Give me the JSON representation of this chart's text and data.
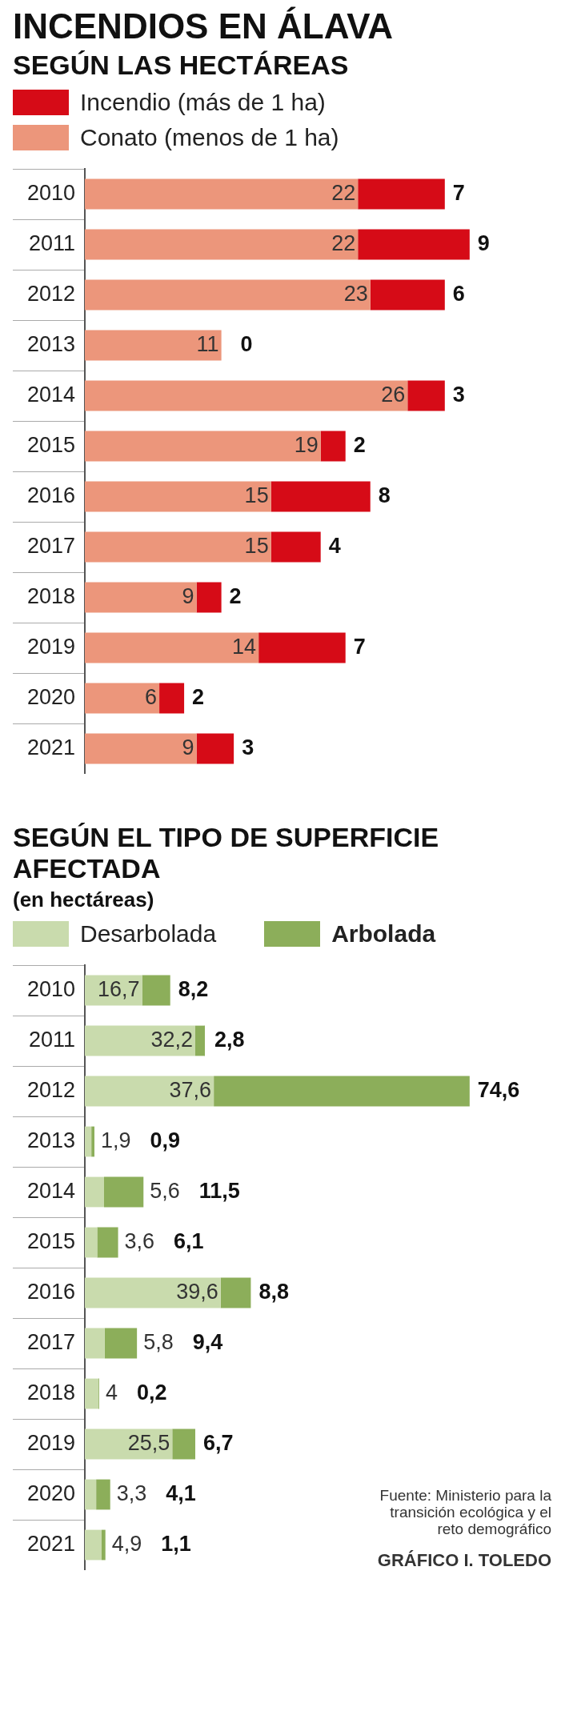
{
  "chart_data": [
    {
      "type": "bar",
      "orientation": "horizontal",
      "stacked": true,
      "title": "INCENDIOS EN ÁLAVA",
      "subtitle": "SEGÚN LAS HECTÁREAS",
      "legend": "top left",
      "data_labels": true,
      "categories": [
        "2010",
        "2011",
        "2012",
        "2013",
        "2014",
        "2015",
        "2016",
        "2017",
        "2018",
        "2019",
        "2020",
        "2021"
      ],
      "series": [
        {
          "name": "Conato (menos de 1 ha)",
          "color": "#ec967b",
          "values": [
            22,
            22,
            23,
            11,
            26,
            19,
            15,
            15,
            9,
            14,
            6,
            9
          ]
        },
        {
          "name": "Incendio (más de 1 ha)",
          "color": "#d60b17",
          "values": [
            7,
            9,
            6,
            0,
            3,
            2,
            8,
            4,
            2,
            7,
            2,
            3
          ]
        }
      ]
    },
    {
      "type": "bar",
      "orientation": "horizontal",
      "stacked": true,
      "title": "SEGÚN EL TIPO DE SUPERFICIE AFECTADA",
      "subtitle": "(en hectáreas)",
      "legend": "top left",
      "categories": [
        "2010",
        "2011",
        "2012",
        "2013",
        "2014",
        "2015",
        "2016",
        "2017",
        "2018",
        "2019",
        "2020",
        "2021"
      ],
      "series": [
        {
          "name": "Desarbolada",
          "color": "#c9dbad",
          "values": [
            16.7,
            32.2,
            37.6,
            1.9,
            5.6,
            3.6,
            39.6,
            5.8,
            4,
            25.5,
            3.3,
            4.9
          ],
          "value_labels": [
            "16,7",
            "32,2",
            "37,6",
            "1,9",
            "5,6",
            "3,6",
            "39,6",
            "5,8",
            "4",
            "25,5",
            "3,3",
            "4,9"
          ]
        },
        {
          "name": "Arbolada",
          "color": "#8cae5a",
          "values": [
            8.2,
            2.8,
            74.6,
            0.9,
            11.5,
            6.1,
            8.8,
            9.4,
            0.2,
            6.7,
            4.1,
            1.1
          ],
          "value_labels": [
            "8,2",
            "2,8",
            "74,6",
            "0,9",
            "11,5",
            "6,1",
            "8,8",
            "9,4",
            "0,2",
            "6,7",
            "4,1",
            "1,1"
          ]
        }
      ],
      "annotations": [
        "Fuente: Ministerio para la transición ecológica y el reto demográfico",
        "GRÁFICO I. TOLEDO"
      ]
    }
  ]
}
